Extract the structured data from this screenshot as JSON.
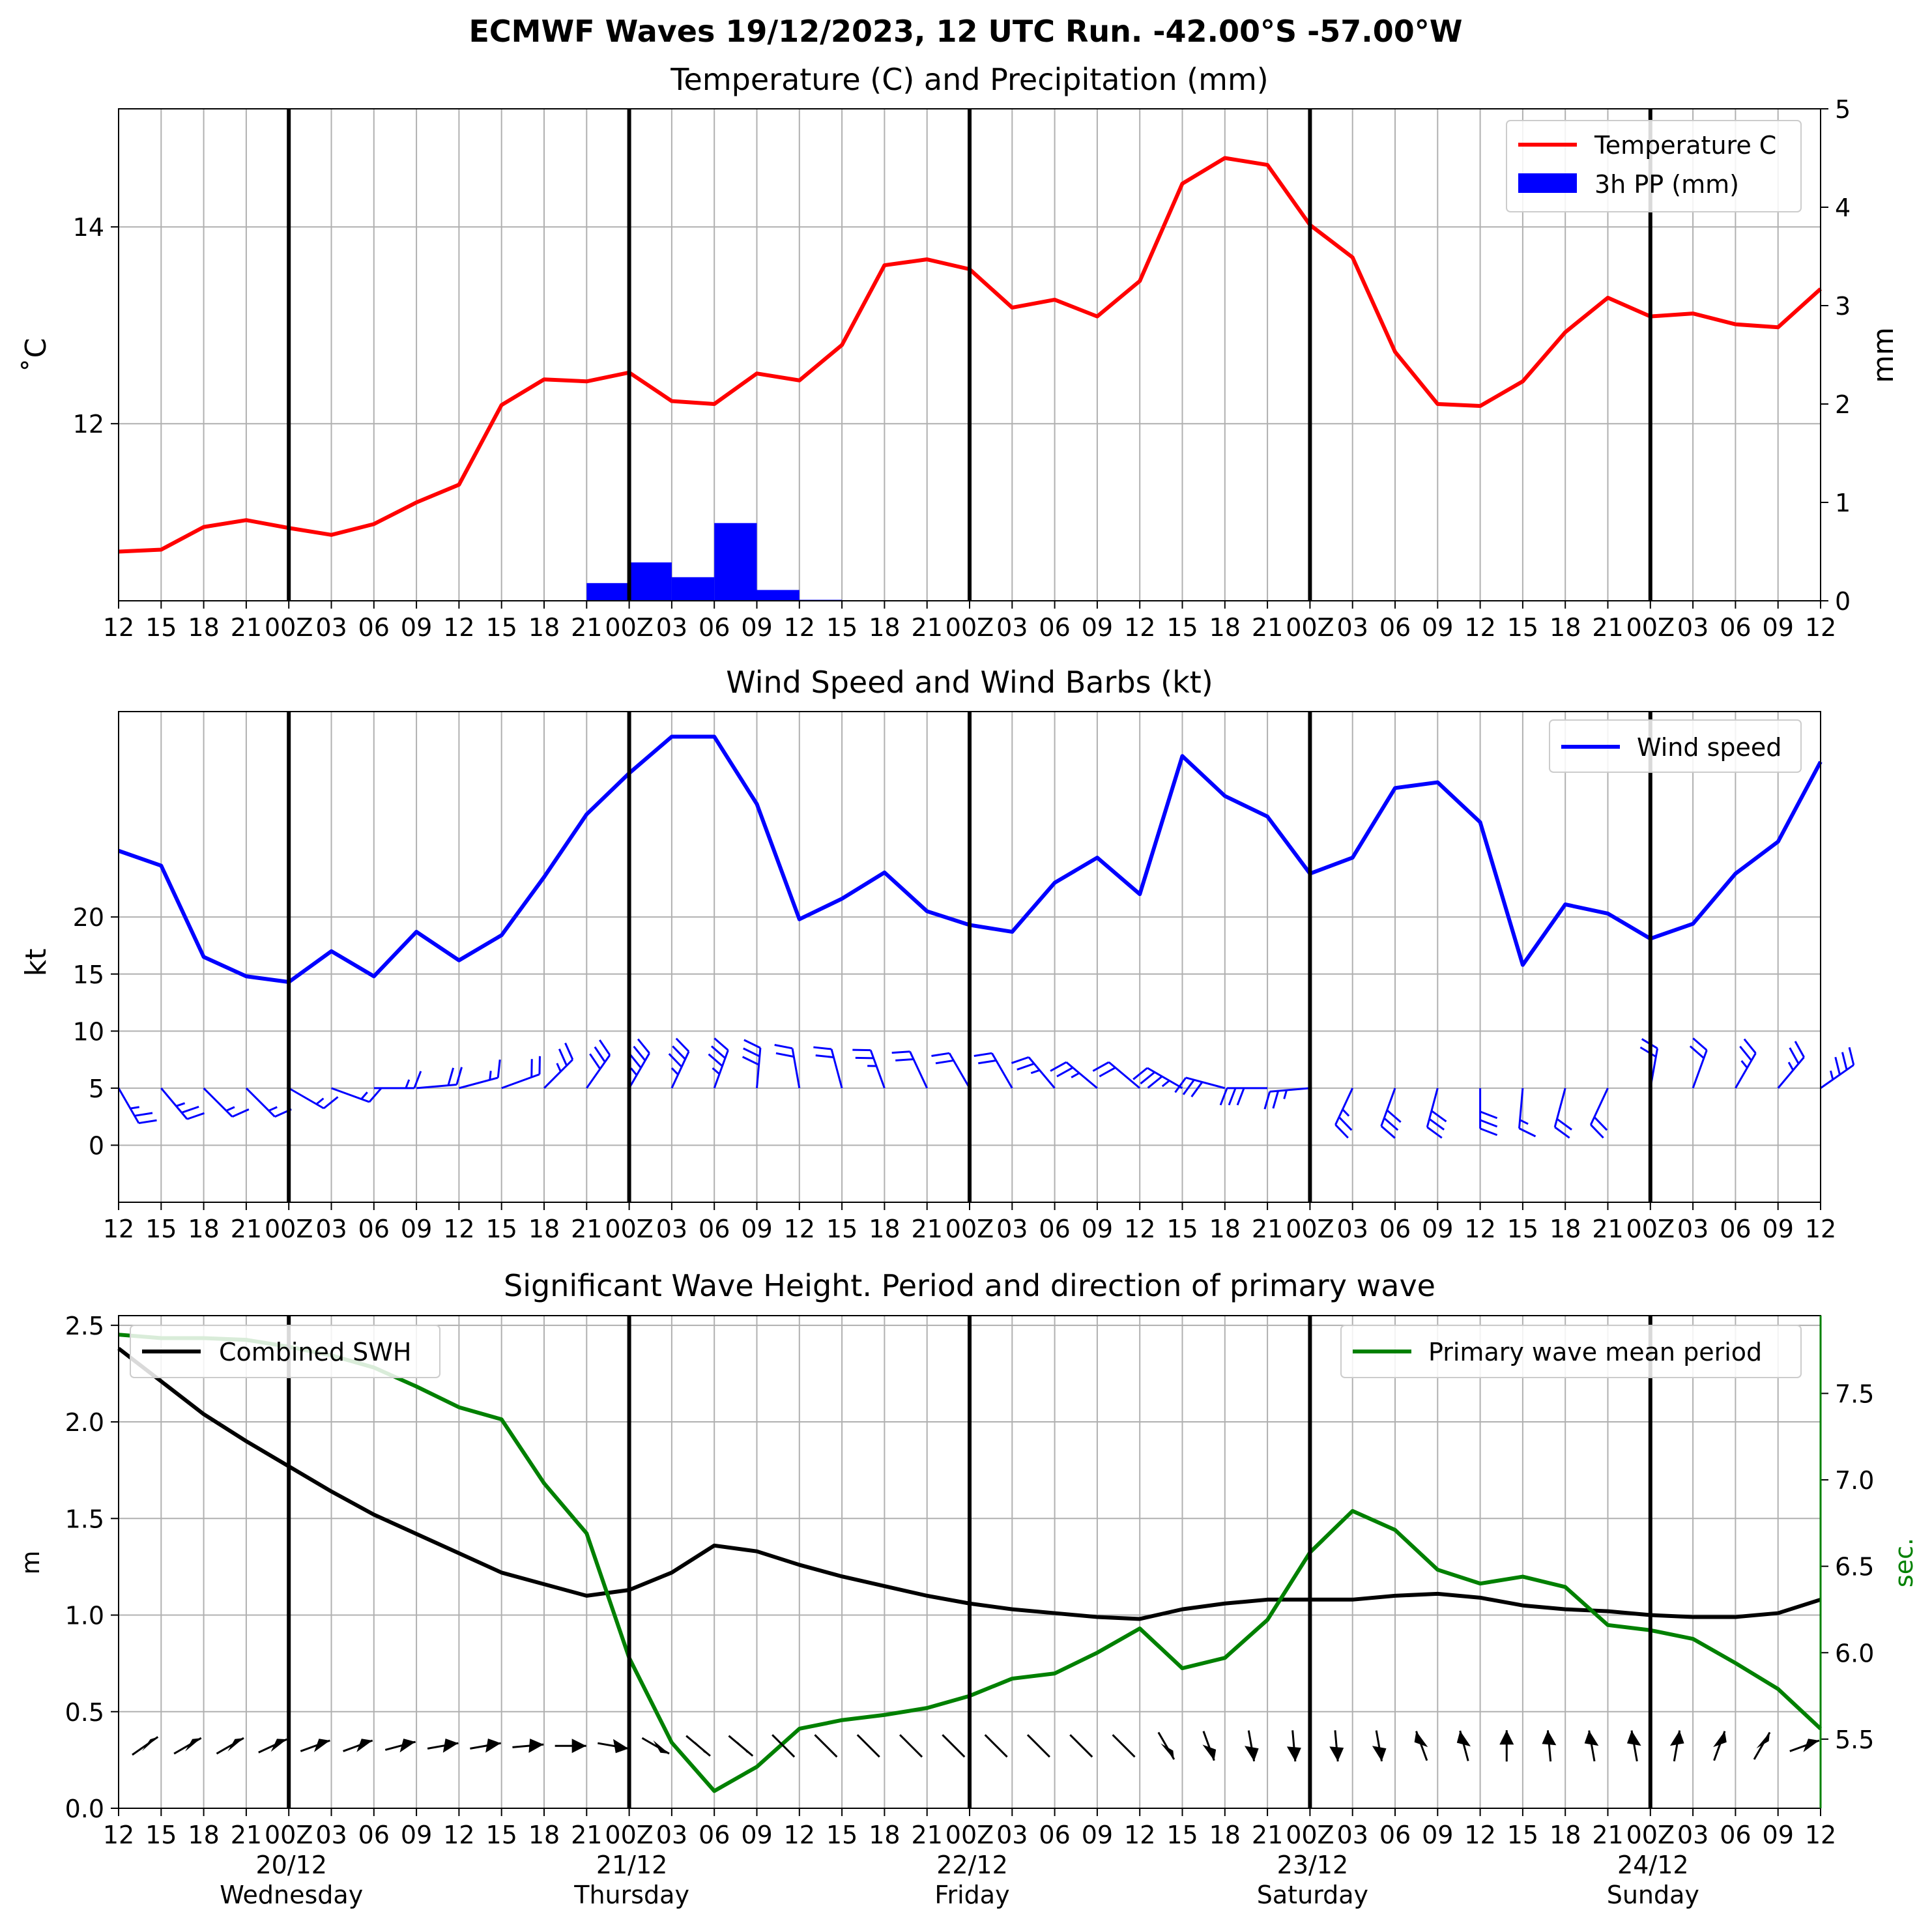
{
  "title": "ECMWF Waves 19/12/2023, 12 UTC Run. -42.00°S -57.00°W",
  "time_axis": {
    "hour_labels": [
      "12",
      "15",
      "18",
      "21",
      "00Z",
      "03",
      "06",
      "09",
      "12",
      "15",
      "18",
      "21",
      "00Z",
      "03",
      "06",
      "09",
      "12",
      "15",
      "18",
      "21",
      "00Z",
      "03",
      "06",
      "09",
      "12",
      "15",
      "18",
      "21",
      "00Z",
      "03",
      "06",
      "09",
      "12",
      "15",
      "18",
      "21",
      "00Z",
      "03",
      "06",
      "09",
      "12"
    ],
    "day_labels": [
      {
        "index": 4,
        "date": "20/12",
        "day": "Wednesday"
      },
      {
        "index": 12,
        "date": "21/12",
        "day": "Thursday"
      },
      {
        "index": 20,
        "date": "22/12",
        "day": "Friday"
      },
      {
        "index": 28,
        "date": "23/12",
        "day": "Saturday"
      },
      {
        "index": 36,
        "date": "24/12",
        "day": "Sunday"
      }
    ],
    "midnight_indices": [
      4,
      12,
      20,
      28,
      36
    ]
  },
  "chart_data": [
    {
      "type": "line",
      "title": "Temperature (C) and Precipitation (mm)",
      "ylabel": "$^\\circ$C",
      "ylabel_display": "˚C",
      "y2label": "mm",
      "ylim": [
        10.2,
        15.2
      ],
      "yticks": [
        12,
        14
      ],
      "y2lim": [
        0,
        5
      ],
      "y2ticks": [
        0,
        1,
        2,
        3,
        4,
        5
      ],
      "grid": true,
      "legend": "top-right",
      "series": [
        {
          "name": "Temperature C",
          "color": "#ff0000",
          "kind": "line",
          "values": [
            10.7,
            10.72,
            10.95,
            11.02,
            10.94,
            10.87,
            10.98,
            11.2,
            11.38,
            12.19,
            12.45,
            12.43,
            12.52,
            12.23,
            12.2,
            12.51,
            12.44,
            12.8,
            13.61,
            13.67,
            13.57,
            13.18,
            13.26,
            13.09,
            13.45,
            14.44,
            14.7,
            14.63,
            14.02,
            13.69,
            12.73,
            12.2,
            12.18,
            12.43,
            12.93,
            13.28,
            13.09,
            13.12,
            13.01,
            12.98,
            13.37
          ]
        },
        {
          "name": "3h PP (mm)",
          "color": "#0000ff",
          "kind": "bar",
          "values": [
            0,
            0,
            0,
            0,
            0,
            0,
            0,
            0,
            0,
            0,
            0,
            0.18,
            0.39,
            0.24,
            0.79,
            0.11,
            0.01,
            0,
            0,
            0,
            0,
            0,
            0,
            0,
            0,
            0,
            0,
            0,
            0,
            0,
            0,
            0,
            0,
            0,
            0,
            0,
            0,
            0,
            0,
            0,
            0
          ]
        }
      ]
    },
    {
      "type": "line",
      "title": "Wind Speed and Wind Barbs (kt)",
      "ylabel": "kt",
      "ylim": [
        -5,
        38
      ],
      "yticks": [
        0,
        5,
        10,
        15,
        20
      ],
      "grid": true,
      "legend": "top-right",
      "series": [
        {
          "name": "Wind speed",
          "color": "#0000ff",
          "values": [
            25.8,
            24.5,
            16.5,
            14.8,
            14.3,
            17.0,
            14.8,
            18.7,
            16.2,
            18.4,
            23.5,
            29.0,
            32.6,
            35.8,
            35.8,
            29.9,
            19.8,
            21.6,
            23.9,
            20.5,
            19.3,
            18.7,
            23.0,
            25.2,
            22.0,
            34.1,
            30.6,
            28.8,
            23.8,
            25.2,
            31.3,
            31.8,
            28.3,
            15.8,
            21.1,
            20.3,
            18.1,
            19.4,
            23.8,
            26.6,
            33.6
          ]
        },
        {
          "name": "Wind barbs",
          "color": "#0000ff",
          "kind": "barb",
          "barb_y": 5,
          "direction_deg": [
            330,
            320,
            315,
            315,
            300,
            290,
            270,
            265,
            255,
            250,
            225,
            215,
            210,
            205,
            200,
            185,
            170,
            165,
            160,
            155,
            150,
            150,
            140,
            130,
            130,
            120,
            105,
            90,
            85,
            25,
            20,
            15,
            0,
            5,
            15,
            25,
            190,
            200,
            210,
            220,
            235
          ]
        }
      ]
    },
    {
      "type": "line",
      "title": "Significant Wave Height. Period and direction of primary wave",
      "ylabel": "m",
      "y2label": "sec.",
      "ylim": [
        0,
        2.55
      ],
      "yticks": [
        0.0,
        0.5,
        1.0,
        1.5,
        2.0,
        2.5
      ],
      "y2lim": [
        5.1,
        7.95
      ],
      "y2ticks": [
        5.5,
        6.0,
        6.5,
        7.0,
        7.5
      ],
      "grid": true,
      "legend": [
        "top-left",
        "top-right"
      ],
      "series": [
        {
          "name": "Combined SWH",
          "color": "#000000",
          "axis": "left",
          "values": [
            2.38,
            2.21,
            2.04,
            1.9,
            1.77,
            1.64,
            1.52,
            1.42,
            1.32,
            1.22,
            1.16,
            1.1,
            1.13,
            1.22,
            1.36,
            1.33,
            1.26,
            1.2,
            1.15,
            1.1,
            1.06,
            1.03,
            1.01,
            0.99,
            0.98,
            1.03,
            1.06,
            1.08,
            1.08,
            1.08,
            1.1,
            1.11,
            1.09,
            1.05,
            1.03,
            1.02,
            1.0,
            0.99,
            0.99,
            1.01,
            1.08
          ]
        },
        {
          "name": "Primary wave mean period",
          "color": "#008000",
          "axis": "right",
          "values": [
            7.84,
            7.82,
            7.82,
            7.81,
            7.77,
            7.72,
            7.65,
            7.54,
            7.42,
            7.35,
            6.98,
            6.69,
            5.97,
            5.48,
            5.2,
            5.34,
            5.56,
            5.61,
            5.64,
            5.68,
            5.75,
            5.85,
            5.88,
            6.0,
            6.14,
            5.91,
            5.97,
            6.19,
            6.58,
            6.82,
            6.71,
            6.48,
            6.4,
            6.44,
            6.38,
            6.16,
            6.13,
            6.08,
            5.94,
            5.79,
            5.56
          ]
        },
        {
          "name": "Primary wave direction",
          "color": "#000000",
          "kind": "arrow",
          "arrow_y": 0.35,
          "direction_deg": [
            135,
            125,
            120,
            120,
            115,
            110,
            110,
            105,
            100,
            100,
            95,
            90,
            80,
            60,
            50,
            50,
            45,
            45,
            45,
            45,
            45,
            45,
            45,
            45,
            45,
            30,
            20,
            10,
            5,
            5,
            10,
            200,
            195,
            180,
            185,
            190,
            190,
            170,
            160,
            150,
            110
          ]
        }
      ]
    }
  ]
}
